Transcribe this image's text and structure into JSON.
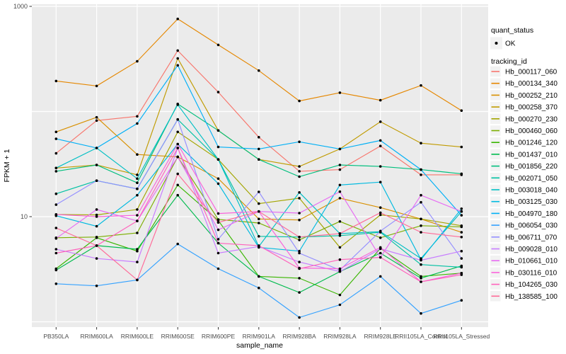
{
  "colors": {
    "panel_background": "#EBEBEB",
    "gridline": "#FFFFFF",
    "tick_label": "#4D4D4D",
    "axis_title": "#000000",
    "tick_mark": "#333333",
    "legend_key_background": "#F2F2F2",
    "point": "#000000"
  },
  "axes": {
    "x_title": "sample_name",
    "y_title": "FPKM + 1"
  },
  "legend": {
    "quant_status": {
      "title": "quant_status",
      "items": [
        {
          "label": "OK",
          "marker": "point",
          "color": "#000000"
        }
      ]
    },
    "tracking": {
      "title": "tracking_id"
    }
  },
  "chart_data": {
    "type": "line",
    "title": "",
    "xlabel": "sample_name",
    "ylabel": "FPKM + 1",
    "y_scale": "log10",
    "ylim": [
      0.95,
      1150
    ],
    "grid": true,
    "legend_position": "right",
    "y_ticks": [
      {
        "label": "1000",
        "value": 1000
      },
      {
        "label": "10",
        "value": 10
      }
    ],
    "y_gridlines": [
      1000,
      100,
      10,
      1
    ],
    "categories": [
      "PB350LA",
      "RRIM600LA",
      "RRIM600LE",
      "RRIM600SE",
      "RRIM600PE",
      "RRIM901LA",
      "RRIM928BA",
      "RRIM928LA",
      "RRIM928LE",
      "RRII105LA_Control",
      "RRII105LA_Stressed"
    ],
    "series": [
      {
        "name": "Hb_000117_060",
        "color": "#F8766D",
        "values": [
          40,
          82,
          90,
          380,
          153,
          57,
          27,
          28,
          47,
          25,
          25
        ]
      },
      {
        "name": "Hb_000134_340",
        "color": "#E58700",
        "values": [
          195,
          175,
          300,
          760,
          430,
          245,
          126,
          151,
          128,
          177,
          102
        ]
      },
      {
        "name": "Hb_000252_210",
        "color": "#D89000",
        "values": [
          64,
          88,
          39,
          37,
          23,
          9.5,
          9.3,
          15,
          12.2,
          9.5,
          7.1
        ]
      },
      {
        "name": "Hb_000258_370",
        "color": "#C09B00",
        "values": [
          29,
          31,
          25,
          320,
          66,
          35,
          30,
          44,
          80,
          50,
          46
        ]
      },
      {
        "name": "Hb_000270_230",
        "color": "#A3A500",
        "values": [
          10.5,
          10.4,
          11.7,
          64,
          35,
          13.3,
          15,
          5.1,
          10.4,
          9.5,
          8.2
        ]
      },
      {
        "name": "Hb_000460_060",
        "color": "#7CAE00",
        "values": [
          6.3,
          6.4,
          7,
          37,
          9.4,
          8.7,
          6,
          9,
          6.3,
          8.2,
          8
        ]
      },
      {
        "name": "Hb_001246_120",
        "color": "#39B600",
        "values": [
          3.2,
          6.3,
          4.7,
          20,
          9.2,
          2.7,
          2.6,
          1.8,
          5,
          2.7,
          2.9
        ]
      },
      {
        "name": "Hb_001437_010",
        "color": "#00BB4E",
        "values": [
          3.1,
          5.3,
          4.9,
          16,
          5.6,
          2.7,
          1.9,
          3,
          4.5,
          2.6,
          3.4
        ]
      },
      {
        "name": "Hb_001856_220",
        "color": "#00BF7D",
        "values": [
          27,
          31,
          21,
          118,
          66,
          35,
          24,
          31,
          30,
          28,
          25.6
        ]
      },
      {
        "name": "Hb_002071_050",
        "color": "#00C1A3",
        "values": [
          16.5,
          22,
          18.4,
          84,
          35,
          6.5,
          6.4,
          6.6,
          7.1,
          3.5,
          3.3
        ]
      },
      {
        "name": "Hb_003018_040",
        "color": "#00BFC4",
        "values": [
          29,
          45,
          23,
          116,
          35,
          5.2,
          17,
          6.9,
          7.2,
          4,
          11.2
        ]
      },
      {
        "name": "Hb_003125_030",
        "color": "#00BAE0",
        "values": [
          10.2,
          8.1,
          16,
          49,
          20.6,
          5.1,
          4.7,
          20,
          21.3,
          3.9,
          11.9
        ]
      },
      {
        "name": "Hb_004970_180",
        "color": "#00B0F6",
        "values": [
          55,
          45,
          77,
          275,
          46,
          44,
          51.5,
          44,
          53,
          28,
          10.3
        ]
      },
      {
        "name": "Hb_006054_030",
        "color": "#35A2FF",
        "values": [
          2.3,
          2.2,
          2.5,
          5.5,
          3.2,
          2.1,
          1.1,
          1.45,
          2.7,
          1.2,
          1.6
        ]
      },
      {
        "name": "Hb_006711_070",
        "color": "#9590FF",
        "values": [
          13,
          22,
          18.4,
          84,
          6.1,
          17.2,
          4.5,
          3.1,
          7.3,
          13.7,
          4
        ]
      },
      {
        "name": "Hb_009028_010",
        "color": "#C77CFF",
        "values": [
          4.9,
          4,
          3.7,
          45,
          4.5,
          5.2,
          3.7,
          3,
          4.95,
          3.85,
          4.7
        ]
      },
      {
        "name": "Hb_010661_010",
        "color": "#E76BF3",
        "values": [
          6.2,
          11.7,
          9.1,
          37,
          7.5,
          11.2,
          10.8,
          17.3,
          4.1,
          16,
          11.2
        ]
      },
      {
        "name": "Hb_030116_010",
        "color": "#FA62DB",
        "values": [
          10.5,
          10,
          10.3,
          49,
          10.7,
          11.2,
          3.25,
          3.2,
          5.1,
          2.4,
          2.9
        ]
      },
      {
        "name": "Hb_104265_030",
        "color": "#FF62BC",
        "values": [
          4.5,
          5.3,
          9.1,
          45,
          5.6,
          5.3,
          3.2,
          3.9,
          4.1,
          2.4,
          2.8
        ]
      },
      {
        "name": "Hb_138585_100",
        "color": "#FF6A98",
        "values": [
          7.8,
          5.3,
          2.5,
          25.5,
          8.8,
          11.2,
          6.4,
          6.9,
          10.9,
          7.1,
          6.4
        ]
      }
    ]
  }
}
